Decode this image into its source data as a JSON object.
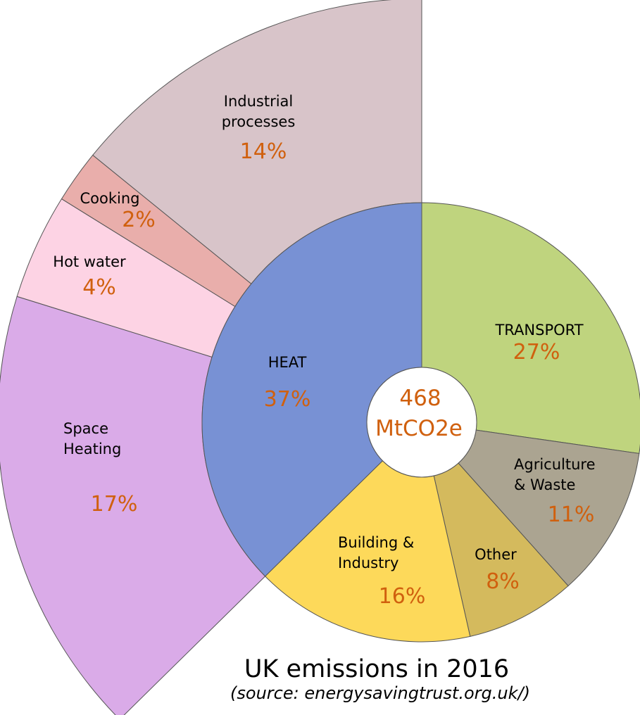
{
  "chart_data": {
    "type": "pie",
    "subtype": "sunburst",
    "title": "UK emissions in 2016",
    "subtitle": "(source: energysavingtrust.org.uk/)",
    "center_label": {
      "line1": "468",
      "line2": "MtCO2e"
    },
    "accent_color": "#d0600e",
    "inner_ring": [
      {
        "label": [
          "TRANSPORT"
        ],
        "value": 27,
        "pct_label": "27%",
        "color": "#bfd47e"
      },
      {
        "label": [
          "Agriculture",
          "& Waste"
        ],
        "value": 11,
        "pct_label": "11%",
        "color": "#aba491"
      },
      {
        "label": [
          "Other"
        ],
        "value": 8,
        "pct_label": "8%",
        "color": "#d4ba5d"
      },
      {
        "label": [
          "Building &",
          "Industry"
        ],
        "value": 16,
        "pct_label": "16%",
        "color": "#fdd95a"
      },
      {
        "label": [
          "HEAT"
        ],
        "value": 37,
        "pct_label": "37%",
        "color": "#7891d4"
      }
    ],
    "outer_ring": {
      "parent": "HEAT",
      "segments": [
        {
          "label": [
            "Space",
            "Heating"
          ],
          "value": 17,
          "pct_label": "17%",
          "color": "#daabe8"
        },
        {
          "label": [
            "Hot water"
          ],
          "value": 4,
          "pct_label": "4%",
          "color": "#fdd3e4"
        },
        {
          "label": [
            "Cooking"
          ],
          "value": 2,
          "pct_label": "2%",
          "color": "#e9aeab"
        },
        {
          "label": [
            "Industrial",
            "processes"
          ],
          "value": 14,
          "pct_label": "14%",
          "color": "#d8c4c9"
        }
      ]
    }
  }
}
